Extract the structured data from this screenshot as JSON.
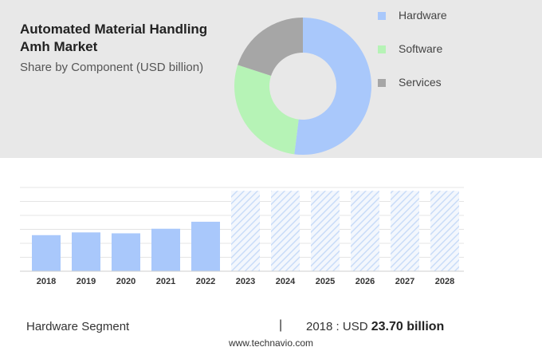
{
  "title": "Automated Material Handling Amh Market",
  "subtitle": "Share by Component (USD billion)",
  "colors": {
    "hardware": "#a9c8fb",
    "software": "#b6f3b6",
    "services": "#a6a6a6",
    "forecast_hatch": "#c9dcf8",
    "grid": "#e4e4e4"
  },
  "chart_data": [
    {
      "type": "pie",
      "title": "Share by Component (USD billion)",
      "donut": true,
      "slices": [
        {
          "name": "Hardware",
          "value": 52
        },
        {
          "name": "Software",
          "value": 28
        },
        {
          "name": "Services",
          "value": 20
        }
      ],
      "legend": "right"
    },
    {
      "type": "bar",
      "categories": [
        "2018",
        "2019",
        "2020",
        "2021",
        "2022",
        "2023",
        "2024",
        "2025",
        "2026",
        "2027",
        "2028"
      ],
      "values": [
        23.7,
        25.5,
        24.9,
        27.9,
        32.5,
        null,
        null,
        null,
        null,
        null,
        null
      ],
      "forecast_categories": [
        "2023",
        "2024",
        "2025",
        "2026",
        "2027",
        "2028"
      ],
      "ylim": [
        0,
        55
      ],
      "grid": true,
      "xlabel": "",
      "ylabel": ""
    }
  ],
  "footer": {
    "segment": "Hardware Segment",
    "separator": "|",
    "year_label": "2018 : USD",
    "value_label": "23.70 billion",
    "url": "www.technavio.com"
  }
}
